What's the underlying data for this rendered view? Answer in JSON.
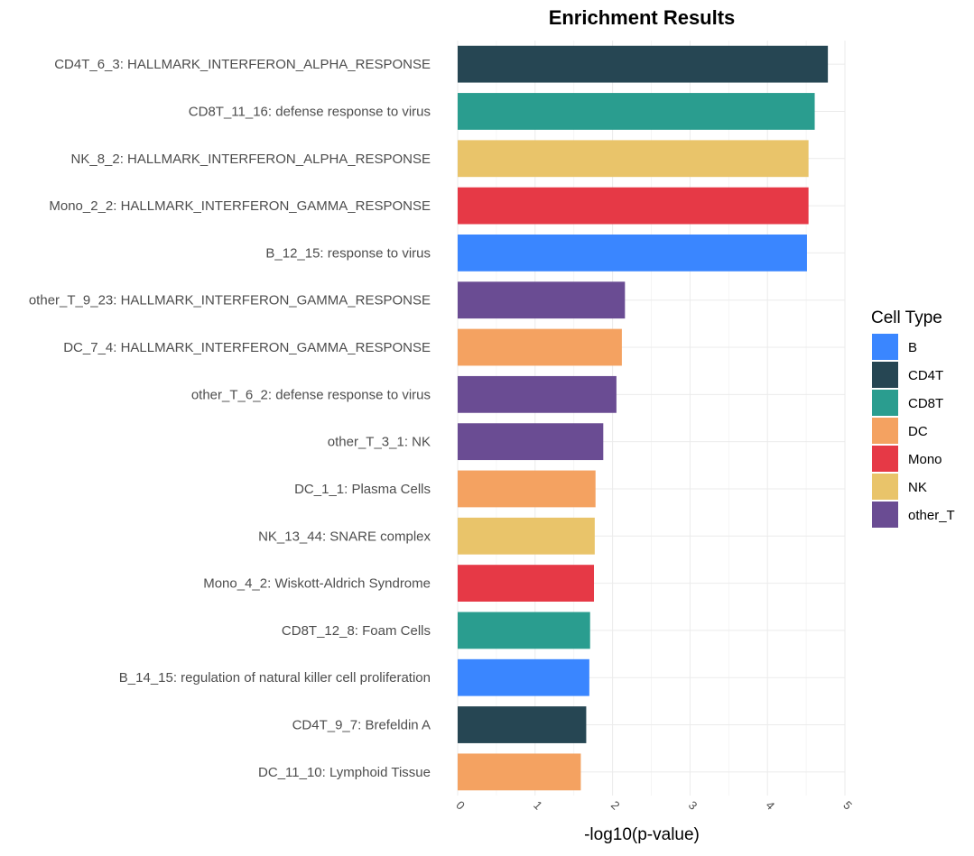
{
  "chart_data": {
    "type": "bar",
    "orientation": "horizontal",
    "title": "Enrichment Results",
    "xlabel": "-log10(p-value)",
    "ylabel": "",
    "xlim": [
      0,
      5
    ],
    "xticks": [
      "0",
      "1",
      "2",
      "3",
      "4",
      "5"
    ],
    "grid": true,
    "legend": {
      "title": "Cell Type",
      "position": "right",
      "entries": [
        "B",
        "CD4T",
        "CD8T",
        "DC",
        "Mono",
        "NK",
        "other_T"
      ]
    },
    "colors": {
      "B": "#3a86ff",
      "CD4T": "#264653",
      "CD8T": "#2a9d8f",
      "DC": "#f4a261",
      "Mono": "#e63946",
      "NK": "#e9c46a",
      "other_T": "#6a4c93"
    },
    "bars": [
      {
        "label": "CD4T_6_3: HALLMARK_INTERFERON_ALPHA_RESPONSE",
        "cell_type": "CD4T",
        "value": 4.78
      },
      {
        "label": "CD8T_11_16: defense response to virus",
        "cell_type": "CD8T",
        "value": 4.61
      },
      {
        "label": "NK_8_2: HALLMARK_INTERFERON_ALPHA_RESPONSE",
        "cell_type": "NK",
        "value": 4.53
      },
      {
        "label": "Mono_2_2: HALLMARK_INTERFERON_GAMMA_RESPONSE",
        "cell_type": "Mono",
        "value": 4.53
      },
      {
        "label": "B_12_15: response to virus",
        "cell_type": "B",
        "value": 4.51
      },
      {
        "label": "other_T_9_23: HALLMARK_INTERFERON_GAMMA_RESPONSE",
        "cell_type": "other_T",
        "value": 2.16
      },
      {
        "label": "DC_7_4: HALLMARK_INTERFERON_GAMMA_RESPONSE",
        "cell_type": "DC",
        "value": 2.12
      },
      {
        "label": "other_T_6_2: defense response to virus",
        "cell_type": "other_T",
        "value": 2.05
      },
      {
        "label": "other_T_3_1: NK",
        "cell_type": "other_T",
        "value": 1.88
      },
      {
        "label": "DC_1_1: Plasma Cells",
        "cell_type": "DC",
        "value": 1.78
      },
      {
        "label": "NK_13_44: SNARE complex",
        "cell_type": "NK",
        "value": 1.77
      },
      {
        "label": "Mono_4_2: Wiskott-Aldrich Syndrome",
        "cell_type": "Mono",
        "value": 1.76
      },
      {
        "label": "CD8T_12_8: Foam Cells",
        "cell_type": "CD8T",
        "value": 1.71
      },
      {
        "label": "B_14_15: regulation of natural killer cell proliferation",
        "cell_type": "B",
        "value": 1.7
      },
      {
        "label": "CD4T_9_7: Brefeldin A",
        "cell_type": "CD4T",
        "value": 1.66
      },
      {
        "label": "DC_11_10: Lymphoid Tissue",
        "cell_type": "DC",
        "value": 1.59
      }
    ]
  }
}
